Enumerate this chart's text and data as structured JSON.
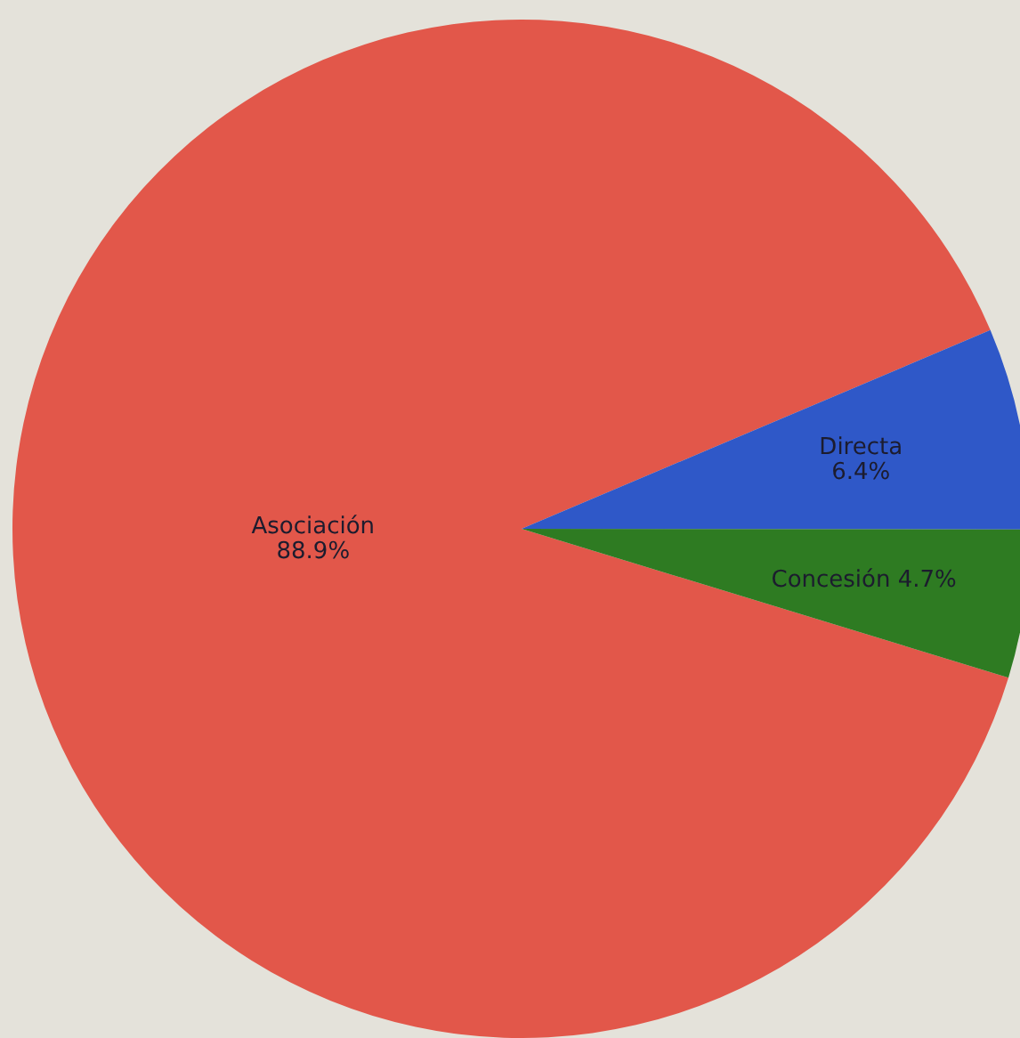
{
  "chart_data": {
    "type": "pie",
    "categories": [
      "Asociación",
      "Directa",
      "Concesión"
    ],
    "values": [
      88.9,
      6.4,
      4.7
    ],
    "value_labels": [
      "88.9%",
      "6.4%",
      "4.7%"
    ],
    "colors": [
      "#e2574a",
      "#2f58c8",
      "#2e7b22"
    ]
  }
}
